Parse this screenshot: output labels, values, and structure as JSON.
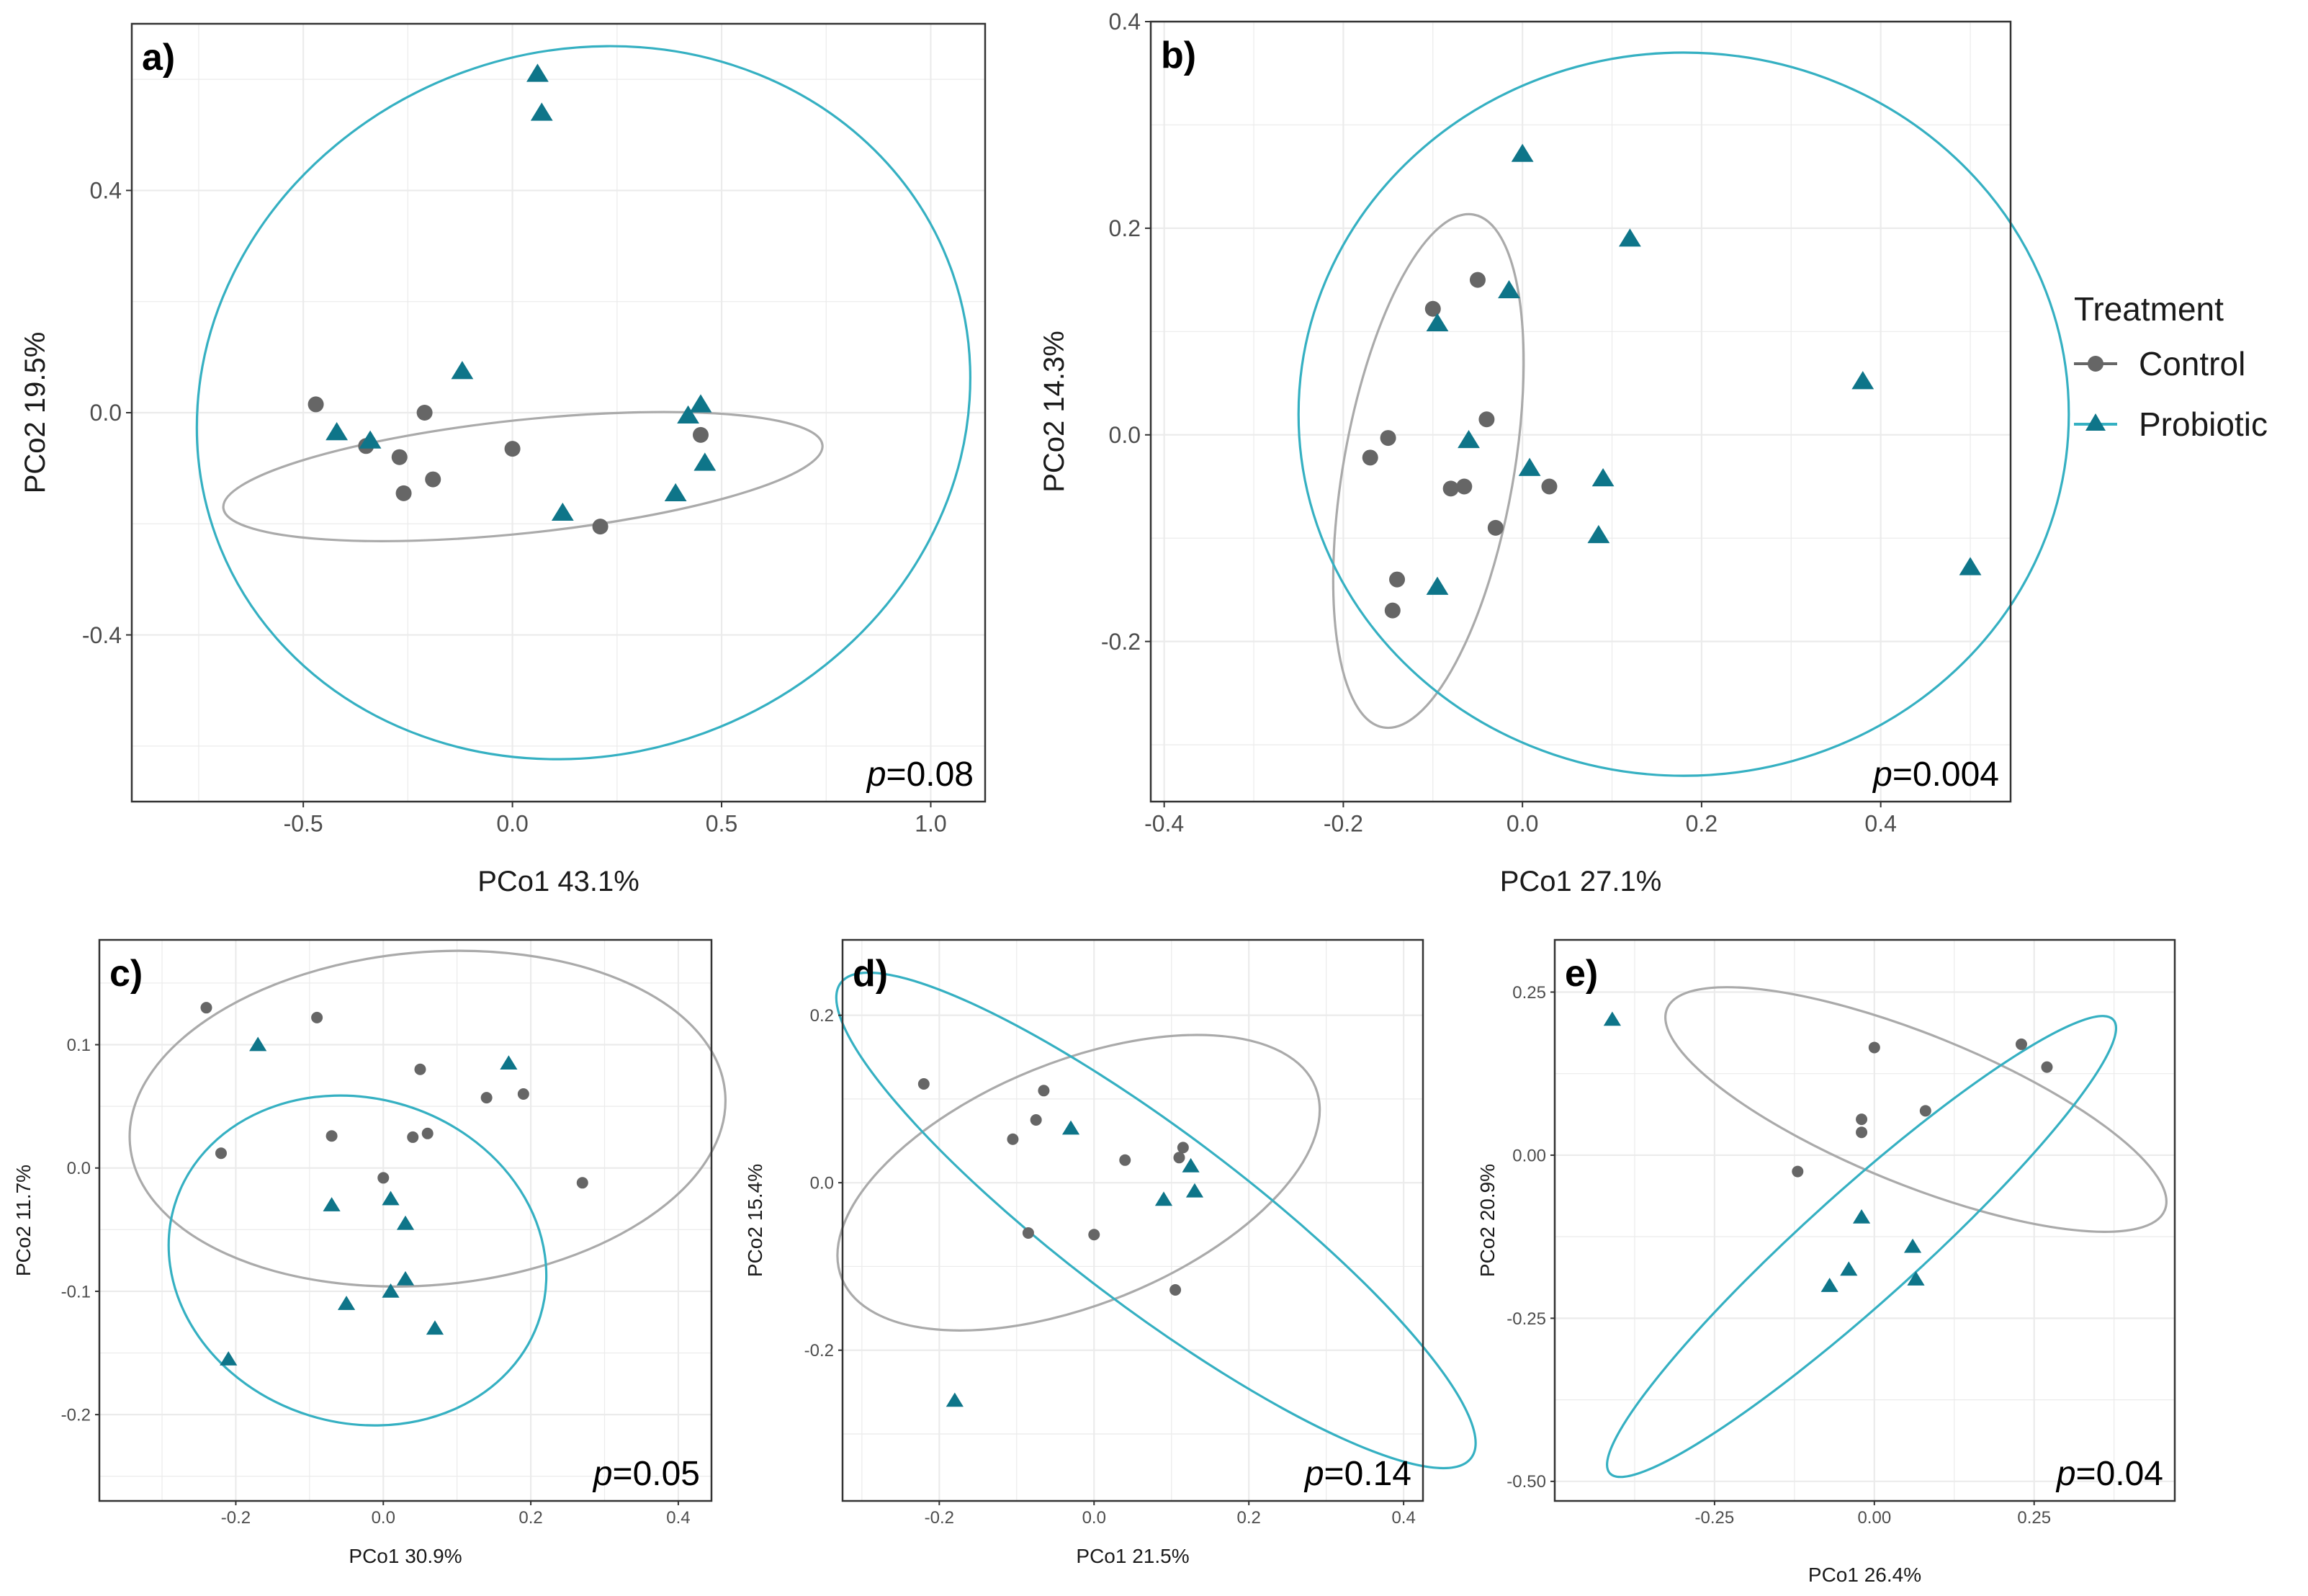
{
  "figure": {
    "background": "#ffffff",
    "grid_color": "#ebebeb",
    "border_color": "#333333"
  },
  "legend": {
    "title": "Treatment",
    "items": [
      {
        "label": "Control",
        "color": "#666666",
        "shape": "circle"
      },
      {
        "label": "Probiotic",
        "color": "#0e7589",
        "shape": "triangle",
        "line_color": "#35b0c2"
      }
    ]
  },
  "chart_data": [
    {
      "panel": "a)",
      "type": "scatter",
      "xlabel": "PCo1 43.1%",
      "ylabel": "PCo2 19.5%",
      "xlim": [
        -0.91,
        1.13
      ],
      "ylim": [
        -0.7,
        0.7
      ],
      "xticks": [
        -0.5,
        0.0,
        0.5,
        1.0
      ],
      "xtick_labels": [
        "-0.5",
        "0.0",
        "0.5",
        "1.0"
      ],
      "yticks": [
        -0.4,
        0.0,
        0.4
      ],
      "ytick_labels": [
        "-0.4",
        "0.0",
        "0.4"
      ],
      "pvalue": "0.08",
      "series": [
        {
          "name": "Control",
          "points": [
            [
              -0.47,
              0.015
            ],
            [
              -0.35,
              -0.06
            ],
            [
              -0.27,
              -0.08
            ],
            [
              -0.21,
              0.0
            ],
            [
              -0.19,
              -0.12
            ],
            [
              -0.26,
              -0.145
            ],
            [
              0.0,
              -0.065
            ],
            [
              0.21,
              -0.205
            ],
            [
              0.45,
              -0.04
            ]
          ],
          "ellipse": {
            "cx": 0.025,
            "cy": -0.115,
            "rx": 0.72,
            "ry": 0.102,
            "angle": -6
          }
        },
        {
          "name": "Probiotic",
          "points": [
            [
              0.06,
              0.61
            ],
            [
              0.07,
              0.54
            ],
            [
              -0.12,
              0.075
            ],
            [
              -0.42,
              -0.035
            ],
            [
              -0.34,
              -0.05
            ],
            [
              0.12,
              -0.18
            ],
            [
              0.42,
              -0.005
            ],
            [
              0.45,
              0.015
            ],
            [
              0.46,
              -0.09
            ],
            [
              0.39,
              -0.145
            ]
          ],
          "ellipse": {
            "cx": 0.17,
            "cy": 0.018,
            "rx": 0.935,
            "ry": 0.633,
            "angle": -20
          }
        }
      ]
    },
    {
      "panel": "b)",
      "type": "scatter",
      "xlabel": "PCo1 27.1%",
      "ylabel": "PCo2 14.3%",
      "xlim": [
        -0.415,
        0.545
      ],
      "ylim": [
        -0.355,
        0.4
      ],
      "xticks": [
        -0.4,
        -0.2,
        0.0,
        0.2,
        0.4
      ],
      "xtick_labels": [
        "-0.4",
        "-0.2",
        "0.0",
        "0.2",
        "0.4"
      ],
      "yticks": [
        -0.2,
        0.0,
        0.2,
        0.4
      ],
      "ytick_labels": [
        "-0.2",
        "0.0",
        "0.2",
        "0.4"
      ],
      "pvalue": "0.004",
      "series": [
        {
          "name": "Control",
          "points": [
            [
              -0.05,
              0.15
            ],
            [
              -0.1,
              0.122
            ],
            [
              -0.04,
              0.015
            ],
            [
              -0.15,
              -0.003
            ],
            [
              -0.17,
              -0.022
            ],
            [
              -0.08,
              -0.052
            ],
            [
              -0.065,
              -0.05
            ],
            [
              -0.03,
              -0.09
            ],
            [
              0.03,
              -0.05
            ],
            [
              -0.14,
              -0.14
            ],
            [
              -0.145,
              -0.17
            ]
          ],
          "ellipse": {
            "cx": -0.105,
            "cy": -0.035,
            "rx": 0.095,
            "ry": 0.252,
            "angle": 10
          }
        },
        {
          "name": "Probiotic",
          "points": [
            [
              0.0,
              0.272
            ],
            [
              0.12,
              0.19
            ],
            [
              -0.015,
              0.14
            ],
            [
              -0.095,
              0.108
            ],
            [
              -0.06,
              -0.005
            ],
            [
              0.008,
              -0.032
            ],
            [
              0.09,
              -0.042
            ],
            [
              0.085,
              -0.097
            ],
            [
              -0.095,
              -0.147
            ],
            [
              0.38,
              0.052
            ],
            [
              0.5,
              -0.128
            ]
          ],
          "ellipse": {
            "cx": 0.18,
            "cy": 0.02,
            "rx": 0.43,
            "ry": 0.35,
            "angle": 0
          }
        }
      ]
    },
    {
      "panel": "c)",
      "type": "scatter",
      "xlabel": "PCo1 30.9%",
      "ylabel": "PCo2 11.7%",
      "xlim": [
        -0.385,
        0.445
      ],
      "ylim": [
        -0.27,
        0.185
      ],
      "xticks": [
        -0.2,
        0.0,
        0.2,
        0.4
      ],
      "xtick_labels": [
        "-0.2",
        "0.0",
        "0.2",
        "0.4"
      ],
      "yticks": [
        -0.2,
        -0.1,
        0.0,
        0.1
      ],
      "ytick_labels": [
        "-0.2",
        "-0.1",
        "0.0",
        "0.1"
      ],
      "pvalue": "0.05",
      "series": [
        {
          "name": "Control",
          "points": [
            [
              -0.24,
              0.13
            ],
            [
              -0.09,
              0.122
            ],
            [
              0.05,
              0.08
            ],
            [
              -0.22,
              0.012
            ],
            [
              -0.07,
              0.026
            ],
            [
              0.04,
              0.025
            ],
            [
              0.06,
              0.028
            ],
            [
              0.14,
              0.057
            ],
            [
              0.19,
              0.06
            ],
            [
              0.27,
              -0.012
            ],
            [
              0.0,
              -0.008
            ]
          ],
          "ellipse": {
            "cx": 0.06,
            "cy": 0.04,
            "rx": 0.405,
            "ry": 0.135,
            "angle": -5
          }
        },
        {
          "name": "Probiotic",
          "points": [
            [
              -0.17,
              0.1
            ],
            [
              0.17,
              0.085
            ],
            [
              -0.07,
              -0.03
            ],
            [
              0.01,
              -0.025
            ],
            [
              0.03,
              -0.045
            ],
            [
              0.03,
              -0.09
            ],
            [
              0.01,
              -0.1
            ],
            [
              -0.05,
              -0.11
            ],
            [
              0.07,
              -0.13
            ],
            [
              -0.21,
              -0.155
            ]
          ],
          "ellipse": {
            "cx": -0.035,
            "cy": -0.075,
            "rx": 0.22,
            "ry": 0.155,
            "angle": -73
          }
        }
      ]
    },
    {
      "panel": "d)",
      "type": "scatter",
      "xlabel": "PCo1 21.5%",
      "ylabel": "PCo2 15.4%",
      "xlim": [
        -0.325,
        0.425
      ],
      "ylim": [
        -0.38,
        0.29
      ],
      "xticks": [
        -0.2,
        0.0,
        0.2,
        0.4
      ],
      "xtick_labels": [
        "-0.2",
        "0.0",
        "0.2",
        "0.4"
      ],
      "yticks": [
        -0.2,
        0.0,
        0.2
      ],
      "ytick_labels": [
        "-0.2",
        "0.0",
        "0.2"
      ],
      "pvalue": "0.14",
      "series": [
        {
          "name": "Control",
          "points": [
            [
              -0.22,
              0.118
            ],
            [
              -0.065,
              0.11
            ],
            [
              -0.075,
              0.075
            ],
            [
              -0.105,
              0.052
            ],
            [
              0.04,
              0.027
            ],
            [
              0.11,
              0.03
            ],
            [
              0.115,
              0.042
            ],
            [
              -0.085,
              -0.06
            ],
            [
              0.0,
              -0.062
            ],
            [
              0.105,
              -0.128
            ]
          ],
          "ellipse": {
            "cx": -0.02,
            "cy": 0.0,
            "rx": 0.33,
            "ry": 0.145,
            "angle": -22
          }
        },
        {
          "name": "Probiotic",
          "points": [
            [
              -0.03,
              0.065
            ],
            [
              0.125,
              0.02
            ],
            [
              0.13,
              -0.01
            ],
            [
              0.09,
              -0.02
            ],
            [
              -0.18,
              -0.26
            ]
          ],
          "ellipse": {
            "cx": 0.08,
            "cy": -0.045,
            "rx": 0.51,
            "ry": 0.105,
            "angle": 37
          }
        }
      ]
    },
    {
      "panel": "e)",
      "type": "scatter",
      "xlabel": "PCo1 26.4%",
      "ylabel": "PCo2 20.9%",
      "xlim": [
        -0.5,
        0.47
      ],
      "ylim": [
        -0.53,
        0.33
      ],
      "xticks": [
        -0.25,
        0.0,
        0.25
      ],
      "xtick_labels": [
        "-0.25",
        "0.00",
        "0.25"
      ],
      "yticks": [
        -0.5,
        -0.25,
        0.0,
        0.25
      ],
      "ytick_labels": [
        "-0.50",
        "-0.25",
        "0.00",
        "0.25"
      ],
      "pvalue": "0.04",
      "series": [
        {
          "name": "Control",
          "points": [
            [
              0.23,
              0.17
            ],
            [
              0.27,
              0.135
            ],
            [
              0.0,
              0.165
            ],
            [
              -0.02,
              0.055
            ],
            [
              -0.02,
              0.035
            ],
            [
              0.08,
              0.068
            ],
            [
              -0.12,
              -0.025
            ]
          ],
          "ellipse": {
            "cx": 0.065,
            "cy": 0.07,
            "rx": 0.42,
            "ry": 0.115,
            "angle": 22
          }
        },
        {
          "name": "Probiotic",
          "points": [
            [
              -0.41,
              0.208
            ],
            [
              -0.02,
              -0.095
            ],
            [
              0.06,
              -0.14
            ],
            [
              0.065,
              -0.19
            ],
            [
              -0.04,
              -0.175
            ],
            [
              -0.07,
              -0.2
            ]
          ],
          "ellipse": {
            "cx": -0.02,
            "cy": -0.14,
            "rx": 0.53,
            "ry": 0.085,
            "angle": -42
          }
        }
      ]
    }
  ]
}
